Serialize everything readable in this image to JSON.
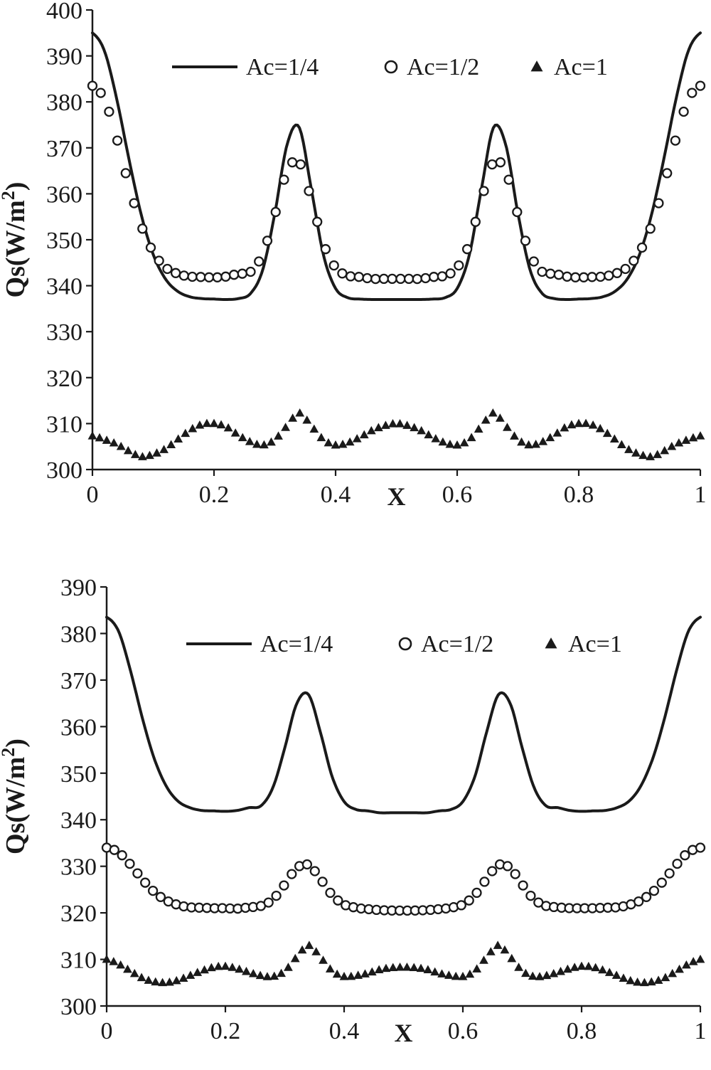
{
  "figure": {
    "background": "#ffffff",
    "ink_color": "#1a1a1a"
  },
  "chart_data": [
    {
      "type": "line",
      "title": "",
      "xlabel": "X",
      "ylabel": "Qs(W/m²)",
      "xlim": [
        0,
        1
      ],
      "ylim": [
        300,
        400
      ],
      "xticks": [
        0,
        0.2,
        0.4,
        0.6,
        0.8,
        1
      ],
      "xtick_labels": [
        "0",
        "0.2",
        "0.4",
        "0.6",
        "0.8",
        "1"
      ],
      "yticks": [
        300,
        310,
        320,
        330,
        340,
        350,
        360,
        370,
        380,
        390,
        400
      ],
      "grid": false,
      "legend_position": "top-inside",
      "x": [
        0,
        0.02,
        0.04,
        0.06,
        0.08,
        0.1,
        0.12,
        0.14,
        0.16,
        0.18,
        0.2,
        0.22,
        0.24,
        0.26,
        0.28,
        0.3,
        0.32,
        0.34,
        0.36,
        0.38,
        0.4,
        0.42,
        0.44,
        0.46,
        0.48,
        0.5,
        0.52,
        0.54,
        0.56,
        0.58,
        0.6,
        0.62,
        0.64,
        0.66,
        0.68,
        0.7,
        0.72,
        0.74,
        0.76,
        0.78,
        0.8,
        0.82,
        0.84,
        0.86,
        0.88,
        0.9,
        0.92,
        0.94,
        0.96,
        0.98,
        1
      ],
      "series": [
        {
          "name": "Ac=1/4",
          "style": "line",
          "y": [
            395,
            391,
            380.6,
            367.6,
            355.6,
            346.8,
            341.5,
            338.8,
            337.6,
            337.2,
            337.1,
            337,
            337.2,
            338.3,
            343.4,
            355.7,
            370.6,
            374.5,
            361.1,
            346.7,
            339.4,
            337.4,
            337.1,
            337,
            337,
            337,
            337,
            337,
            337.1,
            337.4,
            339.4,
            346.7,
            361.1,
            374.5,
            370.6,
            355.7,
            343.4,
            338.3,
            337.2,
            337,
            337.1,
            337.2,
            337.6,
            338.8,
            341.5,
            346.8,
            355.6,
            367.6,
            380.6,
            391,
            395
          ]
        },
        {
          "name": "Ac=1/2",
          "style": "circle",
          "marker_count": 74,
          "y": [
            383.5,
            380.5,
            372.1,
            361.9,
            353.2,
            347.3,
            344,
            342.6,
            342,
            341.9,
            341.8,
            342,
            342.6,
            343,
            346.9,
            355.4,
            364.9,
            366.9,
            358.8,
            349.2,
            343.9,
            342.2,
            341.9,
            341.5,
            341.5,
            341.5,
            341.5,
            341.5,
            341.9,
            342.2,
            343.9,
            349.2,
            358.8,
            366.9,
            364.9,
            355.4,
            346.9,
            343,
            342.6,
            342,
            341.8,
            341.9,
            342,
            342.6,
            344,
            347.3,
            353.2,
            361.9,
            372.1,
            380.5,
            383.5
          ]
        },
        {
          "name": "Ac=1",
          "style": "triangle",
          "marker_count": 86,
          "y": [
            307.3,
            306.5,
            305.5,
            304,
            302.8,
            303.3,
            304.5,
            306.5,
            308.5,
            309.8,
            310,
            309.3,
            307.5,
            306,
            305.3,
            306.5,
            309.5,
            312.3,
            309.5,
            306.5,
            305.3,
            305.8,
            307,
            308.5,
            309.5,
            310,
            309.5,
            308.5,
            307,
            305.8,
            305.3,
            306.5,
            309.5,
            312.3,
            309.5,
            306.5,
            305.3,
            306,
            307.5,
            309.3,
            310,
            309.8,
            308.5,
            306.5,
            304.5,
            303.3,
            302.8,
            304,
            305.5,
            306.5,
            307.3
          ]
        }
      ]
    },
    {
      "type": "line",
      "title": "",
      "xlabel": "X",
      "ylabel": "Qs(W/m²)",
      "xlim": [
        0,
        1
      ],
      "ylim": [
        300,
        390
      ],
      "xticks": [
        0,
        0.2,
        0.4,
        0.6,
        0.8,
        1
      ],
      "xtick_labels": [
        "0",
        "0.2",
        "0.4",
        "0.6",
        "0.8",
        "1"
      ],
      "yticks": [
        300,
        310,
        320,
        330,
        340,
        350,
        360,
        370,
        380,
        390
      ],
      "grid": false,
      "legend_position": "top-inside",
      "x": [
        0,
        0.02,
        0.04,
        0.06,
        0.08,
        0.1,
        0.12,
        0.14,
        0.16,
        0.18,
        0.2,
        0.22,
        0.24,
        0.26,
        0.28,
        0.3,
        0.32,
        0.34,
        0.36,
        0.38,
        0.4,
        0.42,
        0.44,
        0.46,
        0.48,
        0.5,
        0.52,
        0.54,
        0.56,
        0.58,
        0.6,
        0.62,
        0.64,
        0.66,
        0.68,
        0.7,
        0.72,
        0.74,
        0.76,
        0.78,
        0.8,
        0.82,
        0.84,
        0.86,
        0.88,
        0.9,
        0.92,
        0.94,
        0.96,
        0.98,
        1
      ],
      "series": [
        {
          "name": "Ac=1/4",
          "style": "line",
          "y": [
            383.5,
            380.5,
            372.1,
            361.9,
            353.2,
            347.3,
            344,
            342.6,
            342,
            341.9,
            341.8,
            342,
            342.6,
            343,
            346.9,
            355.4,
            364.9,
            366.9,
            358.8,
            349.2,
            343.9,
            342.2,
            341.9,
            341.5,
            341.5,
            341.5,
            341.5,
            341.5,
            341.9,
            342.2,
            343.9,
            349.2,
            358.8,
            366.9,
            364.9,
            355.4,
            346.9,
            343,
            342.6,
            342,
            341.8,
            341.9,
            342,
            342.6,
            344,
            347.3,
            353.2,
            361.9,
            372.1,
            380.5,
            383.5
          ]
        },
        {
          "name": "Ac=1/2",
          "style": "circle",
          "marker_count": 78,
          "y": [
            334,
            333,
            330.4,
            327.2,
            324.5,
            322.7,
            321.7,
            321.2,
            321.1,
            321,
            321,
            320.9,
            321.2,
            321.5,
            322.9,
            326.1,
            329.6,
            330.3,
            327.3,
            323.8,
            321.8,
            321.1,
            320.8,
            320.6,
            320.5,
            320.5,
            320.5,
            320.6,
            320.8,
            321.1,
            321.8,
            323.8,
            327.3,
            330.3,
            329.6,
            326.1,
            322.9,
            321.5,
            321.2,
            321,
            321,
            321,
            321.1,
            321.2,
            321.7,
            322.7,
            324.5,
            327.2,
            330.4,
            333,
            334
          ]
        },
        {
          "name": "Ac=1",
          "style": "triangle",
          "marker_count": 86,
          "y": [
            310,
            309,
            307.5,
            306,
            305.2,
            305,
            305.5,
            306.5,
            307.5,
            308.3,
            308.5,
            308,
            307.2,
            306.5,
            306.3,
            307.5,
            310.5,
            313,
            310.5,
            307.5,
            306.3,
            306.5,
            307,
            307.8,
            308.2,
            308.3,
            308.2,
            307.8,
            307,
            306.5,
            306.3,
            307.5,
            310.5,
            313,
            310.5,
            307.5,
            306.3,
            306.5,
            307.2,
            308,
            308.5,
            308.3,
            307.5,
            306.5,
            305.5,
            305,
            305.2,
            306,
            307.5,
            309,
            310
          ]
        }
      ]
    }
  ]
}
